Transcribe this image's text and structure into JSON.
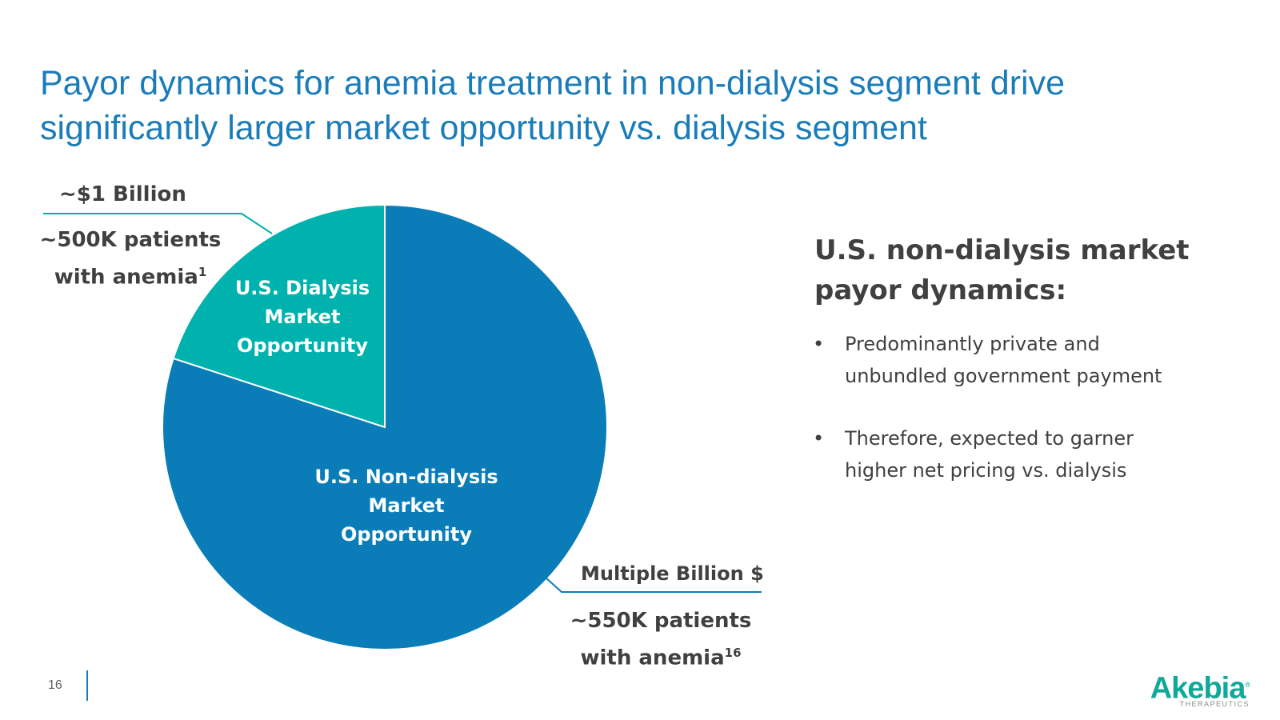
{
  "title_line1": "Payor dynamics for anemia treatment in non-dialysis segment drive",
  "title_line2": "significantly larger market opportunity vs. dialysis segment",
  "chart_data": {
    "type": "pie",
    "slices": [
      {
        "label": "U.S. Dialysis Market Opportunity",
        "value": 20,
        "color": "#00b2ad",
        "line1": "U.S. Dialysis",
        "line2": "Market",
        "line3": "Opportunity"
      },
      {
        "label": "U.S. Non-dialysis Market Opportunity",
        "value": 80,
        "color": "#0a7db8",
        "line1": "U.S. Non-dialysis",
        "line2": "Market",
        "line3": "Opportunity"
      }
    ],
    "annotations": {
      "dialysis_value": "~$1 Billion",
      "dialysis_patients_1": "~500K patients",
      "dialysis_patients_2": "with anemia",
      "dialysis_footnote": "1",
      "nondialysis_value": "Multiple  Billion $",
      "nondialysis_patients_1": "~550K patients",
      "nondialysis_patients_2": "with anemia",
      "nondialysis_footnote": "16"
    }
  },
  "side": {
    "heading_line1": "U.S. non-dialysis market",
    "heading_line2": "payor dynamics:",
    "bullet_char": "•",
    "bullets": [
      "Predominantly private and unbundled government payment",
      "Therefore, expected to garner higher net pricing vs. dialysis"
    ]
  },
  "footer": {
    "page_number": "16",
    "logo_text": "Akebia",
    "logo_sub": "THERAPEUTICS",
    "logo_mark": "®"
  }
}
